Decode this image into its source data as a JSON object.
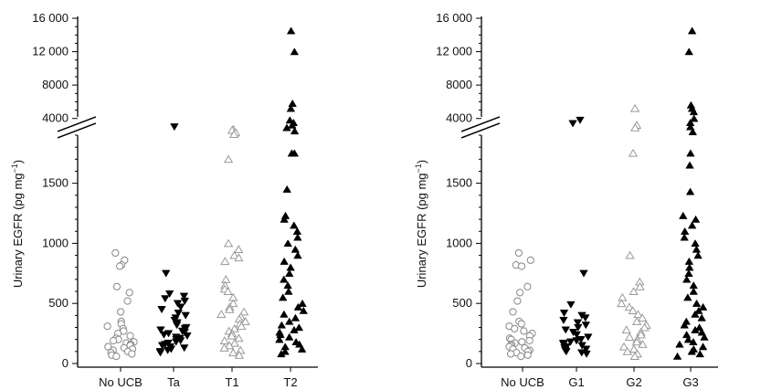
{
  "chart_data": [
    {
      "type": "scatter",
      "ylabel": "Urinary EGFR (pg mg",
      "ylabel_superscript": "−1",
      "ylabel_close": ")",
      "categories": [
        "No UCB",
        "Ta",
        "T1",
        "T2"
      ],
      "y_lower_ticks": [
        0,
        500,
        1000,
        1500
      ],
      "y_lower_tick_labels": [
        "0",
        "500",
        "1000",
        "1500"
      ],
      "y_upper_ticks": [
        4000,
        8000,
        12000,
        16000
      ],
      "y_upper_tick_labels": [
        "4000",
        "8000",
        "12 000",
        "16 000"
      ],
      "ylim_lower": [
        0,
        1900
      ],
      "ylim_upper": [
        2000,
        16000
      ],
      "axis_break": true,
      "series": [
        {
          "category": "No UCB",
          "marker": "circle-open",
          "values": [
            920,
            860,
            820,
            810,
            640,
            590,
            520,
            430,
            350,
            330,
            310,
            290,
            270,
            250,
            230,
            210,
            200,
            190,
            180,
            170,
            160,
            150,
            140,
            130,
            120,
            110,
            100,
            90,
            80,
            70,
            60
          ]
        },
        {
          "category": "Ta",
          "marker": "triangle-down-filled",
          "values": [
            3000,
            750,
            580,
            560,
            540,
            520,
            500,
            470,
            450,
            420,
            400,
            380,
            360,
            340,
            320,
            300,
            290,
            280,
            270,
            260,
            250,
            240,
            230,
            220,
            210,
            200,
            190,
            180,
            170,
            160,
            150,
            140,
            130,
            120,
            110,
            100,
            90
          ]
        },
        {
          "category": "T1",
          "marker": "triangle-up-open",
          "values": [
            2700,
            2600,
            2300,
            2100,
            1700,
            1000,
            950,
            900,
            880,
            850,
            700,
            650,
            620,
            600,
            550,
            500,
            470,
            450,
            430,
            410,
            390,
            370,
            350,
            330,
            310,
            290,
            270,
            250,
            230,
            210,
            190,
            170,
            150,
            130,
            110,
            90,
            70
          ]
        },
        {
          "category": "T2",
          "marker": "triangle-up-filled",
          "values": [
            14500,
            12000,
            5800,
            5200,
            3800,
            3500,
            3200,
            2900,
            2500,
            1750,
            1750,
            1450,
            1230,
            1200,
            1150,
            1100,
            1050,
            1000,
            950,
            900,
            850,
            800,
            750,
            700,
            650,
            600,
            550,
            500,
            470,
            440,
            410,
            380,
            350,
            320,
            300,
            280,
            260,
            240,
            220,
            200,
            180,
            160,
            140,
            120,
            100,
            80
          ]
        }
      ]
    },
    {
      "type": "scatter",
      "ylabel": "Urinary EGFR (pg mg",
      "ylabel_superscript": "−1",
      "ylabel_close": ")",
      "categories": [
        "No UCB",
        "G1",
        "G2",
        "G3"
      ],
      "y_lower_ticks": [
        0,
        500,
        1000,
        1500
      ],
      "y_lower_tick_labels": [
        "0",
        "500",
        "1000",
        "1500"
      ],
      "y_upper_ticks": [
        4000,
        8000,
        12000,
        16000
      ],
      "y_upper_tick_labels": [
        "4000",
        "8000",
        "12 000",
        "16 000"
      ],
      "ylim_lower": [
        0,
        1900
      ],
      "ylim_upper": [
        2000,
        16000
      ],
      "axis_break": true,
      "series": [
        {
          "category": "No UCB",
          "marker": "circle-open",
          "values": [
            920,
            860,
            820,
            810,
            640,
            590,
            520,
            430,
            350,
            330,
            310,
            290,
            270,
            250,
            230,
            210,
            200,
            190,
            180,
            170,
            160,
            150,
            140,
            130,
            120,
            110,
            100,
            90,
            80,
            70,
            60
          ]
        },
        {
          "category": "G1",
          "marker": "triangle-down-filled",
          "values": [
            3800,
            3400,
            750,
            490,
            420,
            400,
            380,
            360,
            340,
            320,
            300,
            280,
            260,
            240,
            220,
            200,
            190,
            180,
            170,
            160,
            150,
            140,
            130,
            120,
            110,
            100,
            90,
            80
          ]
        },
        {
          "category": "G2",
          "marker": "triangle-up-open",
          "values": [
            5200,
            3200,
            2900,
            1750,
            900,
            680,
            640,
            600,
            550,
            500,
            470,
            440,
            410,
            380,
            350,
            320,
            300,
            280,
            260,
            240,
            220,
            200,
            180,
            160,
            140,
            120,
            100,
            80,
            60
          ]
        },
        {
          "category": "G3",
          "marker": "triangle-up-filled",
          "values": [
            14500,
            12000,
            5600,
            5200,
            4800,
            4000,
            3500,
            3000,
            2400,
            1750,
            1650,
            1430,
            1230,
            1200,
            1150,
            1100,
            1050,
            1000,
            950,
            900,
            850,
            800,
            750,
            700,
            650,
            600,
            550,
            500,
            470,
            440,
            410,
            380,
            350,
            320,
            300,
            280,
            260,
            240,
            220,
            200,
            180,
            160,
            140,
            120,
            100,
            80,
            60
          ]
        }
      ]
    }
  ]
}
